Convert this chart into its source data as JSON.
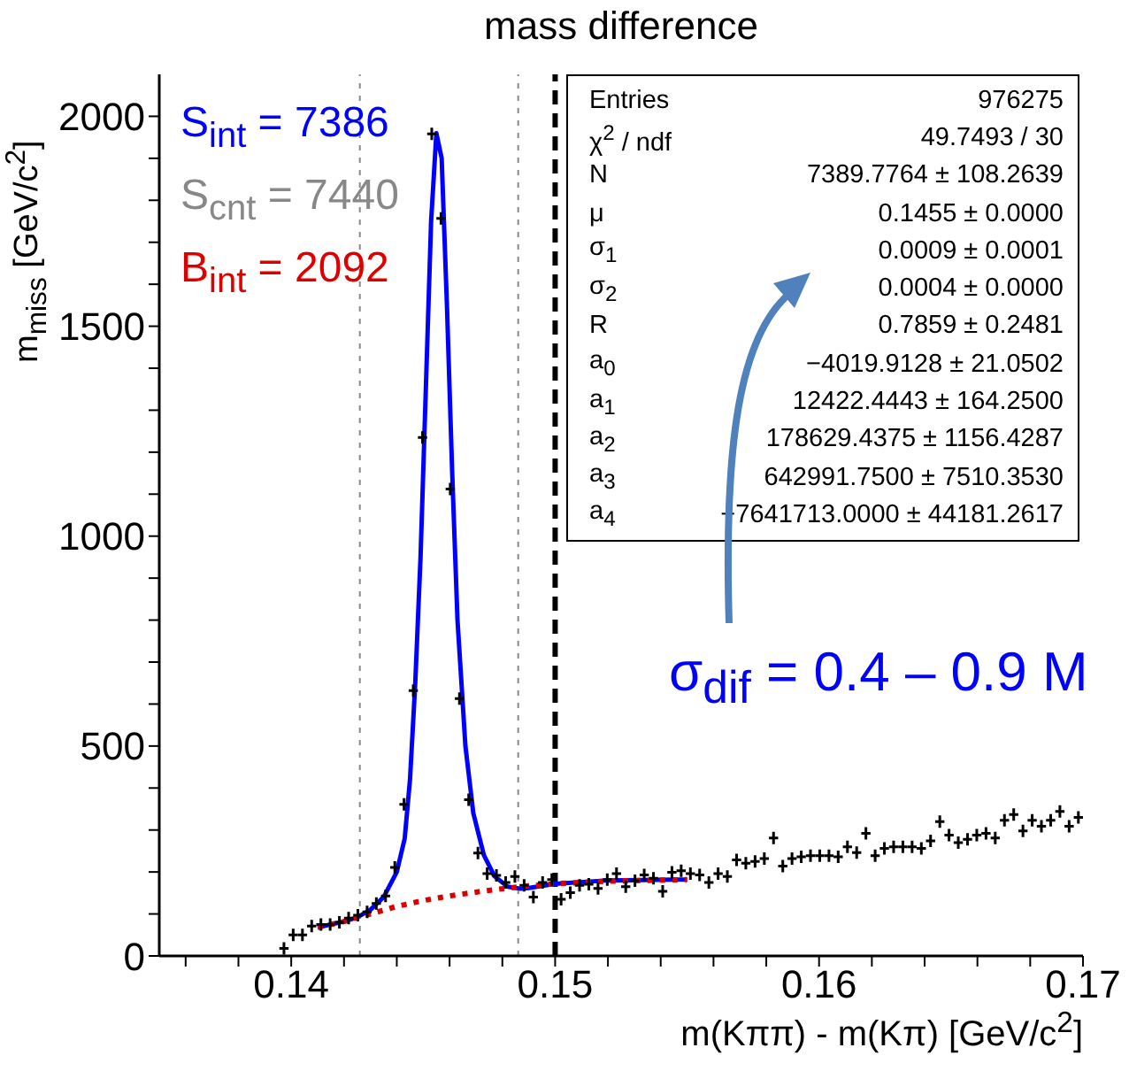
{
  "chart_data": {
    "type": "scatter",
    "title": "mass difference",
    "xlabel": "m(Kππ) - m(Kπ) [GeV/c$^{2}$]",
    "ylabel": "m$_{miss}$ [GeV/c$^{2}$]",
    "xlim": [
      0.135,
      0.17
    ],
    "ylim": [
      0,
      2100
    ],
    "xticks": [
      {
        "value": 0.136,
        "label": null
      },
      {
        "value": 0.138,
        "label": null
      },
      0.14,
      {
        "value": 0.142,
        "label": null
      },
      {
        "value": 0.144,
        "label": null
      },
      {
        "value": 0.146,
        "label": null
      },
      {
        "value": 0.148,
        "label": null
      },
      0.15,
      {
        "value": 0.152,
        "label": null
      },
      {
        "value": 0.154,
        "label": null
      },
      {
        "value": 0.156,
        "label": null
      },
      {
        "value": 0.158,
        "label": null
      },
      0.16,
      {
        "value": 0.162,
        "label": null
      },
      {
        "value": 0.164,
        "label": null
      },
      {
        "value": 0.166,
        "label": null
      },
      {
        "value": 0.168,
        "label": null
      },
      0.17
    ],
    "yticks": [
      0,
      {
        "value": 100,
        "label": null
      },
      {
        "value": 200,
        "label": null
      },
      {
        "value": 300,
        "label": null
      },
      {
        "value": 400,
        "label": null
      },
      500,
      {
        "value": 600,
        "label": null
      },
      {
        "value": 700,
        "label": null
      },
      {
        "value": 800,
        "label": null
      },
      {
        "value": 900,
        "label": null
      },
      1000,
      {
        "value": 1100,
        "label": null
      },
      {
        "value": 1200,
        "label": null
      },
      {
        "value": 1300,
        "label": null
      },
      {
        "value": 1400,
        "label": null
      },
      1500,
      {
        "value": 1600,
        "label": null
      },
      {
        "value": 1700,
        "label": null
      },
      {
        "value": 1800,
        "label": null
      },
      {
        "value": 1900,
        "label": null
      },
      2000
    ],
    "x": [
      0.139725,
      0.140075,
      0.140425,
      0.140775,
      0.141125,
      0.141475,
      0.141825,
      0.142175,
      0.142525,
      0.142875,
      0.143225,
      0.143575,
      0.143925,
      0.144275,
      0.144625,
      0.144975,
      0.145325,
      0.145675,
      0.146025,
      0.146375,
      0.146725,
      0.147075,
      0.147425,
      0.147775,
      0.148125,
      0.148475,
      0.148825,
      0.149175,
      0.149525,
      0.149875,
      0.150225,
      0.150575,
      0.150925,
      0.151275,
      0.151625,
      0.151975,
      0.152325,
      0.152675,
      0.153025,
      0.153375,
      0.153725,
      0.154075,
      0.154425,
      0.154775,
      0.155125,
      0.155475,
      0.155825,
      0.156175,
      0.156525,
      0.156875,
      0.157225,
      0.157575,
      0.157925,
      0.158275,
      0.158625,
      0.158975,
      0.159325,
      0.159675,
      0.160025,
      0.160375,
      0.160725,
      0.161075,
      0.161425,
      0.161775,
      0.162125,
      0.162475,
      0.162825,
      0.163175,
      0.163525,
      0.163875,
      0.164225,
      0.164575,
      0.164925,
      0.165275,
      0.165625,
      0.165975,
      0.166325,
      0.166675,
      0.167025,
      0.167375,
      0.167725,
      0.168075,
      0.168425,
      0.168775,
      0.169125,
      0.169475,
      0.169825
    ],
    "series": [
      {
        "marker": "cross",
        "color": "#000000",
        "values": [
          18,
          50,
          50,
          71,
          75,
          75,
          80,
          90,
          97,
          105,
          125,
          143,
          211,
          361,
          632,
          1235,
          1958,
          1757,
          1112,
          613,
          372,
          245,
          196,
          192,
          175,
          189,
          168,
          140,
          175,
          182,
          135,
          151,
          168,
          171,
          161,
          182,
          196,
          165,
          179,
          193,
          185,
          154,
          199,
          203,
          196,
          193,
          175,
          196,
          189,
          229,
          221,
          225,
          232,
          281,
          214,
          232,
          236,
          239,
          239,
          239,
          236,
          260,
          246,
          292,
          239,
          256,
          260,
          260,
          260,
          256,
          274,
          320,
          288,
          270,
          278,
          288,
          292,
          281,
          323,
          337,
          298,
          323,
          309,
          323,
          344,
          309,
          330
        ]
      },
      {
        "type": "line",
        "line_style": "solid",
        "color": "#0000ff",
        "x": [
          0.141,
          0.142,
          0.1425,
          0.143,
          0.1435,
          0.144,
          0.1443,
          0.1445,
          0.1447,
          0.1449,
          0.1451,
          0.1453,
          0.1455,
          0.1457,
          0.1459,
          0.1461,
          0.1463,
          0.1466,
          0.1469,
          0.1473,
          0.1477,
          0.1482,
          0.1487,
          0.149,
          0.15,
          0.152,
          0.155
        ],
        "values": [
          68,
          82,
          92,
          110,
          140,
          200,
          280,
          420,
          650,
          950,
          1350,
          1750,
          1960,
          1900,
          1550,
          1150,
          800,
          500,
          340,
          240,
          190,
          165,
          160,
          162,
          172,
          180,
          182
        ]
      },
      {
        "type": "line",
        "line_style": "dotted",
        "color": "#dd0000",
        "x": [
          0.141,
          0.142,
          0.143,
          0.144,
          0.145,
          0.146,
          0.147,
          0.148,
          0.149,
          0.15,
          0.152,
          0.155
        ],
        "values": [
          68,
          82,
          100,
          118,
          132,
          143,
          152,
          160,
          167,
          172,
          178,
          182
        ]
      }
    ],
    "ref_lines": [
      {
        "axis": "x",
        "value": 0.15,
        "color": "#000000",
        "line_style": "dashed"
      },
      {
        "axis": "x",
        "value": 0.1426,
        "color": "#888888",
        "line_style": "dotted"
      },
      {
        "axis": "x",
        "value": 0.1486,
        "color": "#888888",
        "line_style": "dotted"
      }
    ],
    "annotations": [
      "S$_{int}$ = 7386",
      "S$_{cnt}$ = 7440",
      "B$_{int}$ = 2092",
      "σ$_{dif}$ = 0.4 – 0.9 M",
      "Entries\t976275",
      "χ$^{2}$ / ndf\t49.7493 / 30",
      "N\t7389.7764 ± 108.2639",
      "μ\t0.1455 ± 0.0000",
      "σ$_{1}$\t0.0009 ± 0.0001",
      "σ$_{2}$\t0.0004 ± 0.0000",
      "R\t0.7859 ± 0.2481",
      "a$_{0}$\t−4019.9128 ± 21.0502",
      "a$_{1}$\t12422.4443 ± 164.2500",
      "a$_{2}$\t178629.4375 ± 1156.4287",
      "a$_{3}$\t642991.7500 ± 7510.3530",
      "a$_{4}$\t−7641713.0000 ± 44181.2617"
    ],
    "grid": false,
    "legend": false
  }
}
